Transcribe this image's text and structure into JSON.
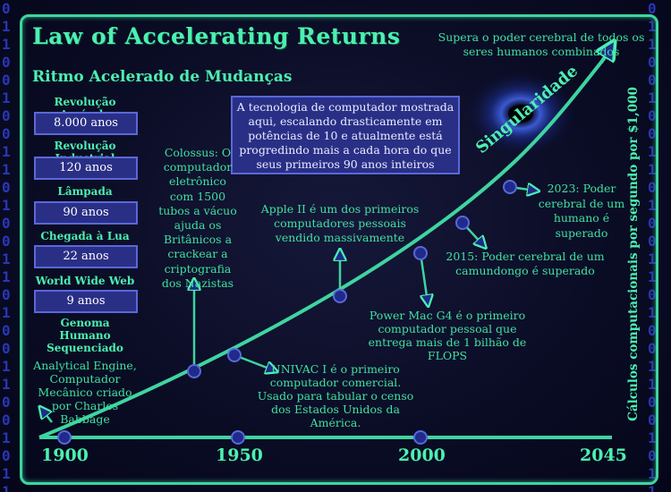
{
  "title": "Law of Accelerating Returns",
  "subtitle": "Ritmo Acelerado de Mudanças",
  "eras": [
    {
      "label": "Revolução Agrícola",
      "value": "8.000 anos"
    },
    {
      "label": "Revolução Industrial",
      "value": "120 anos"
    },
    {
      "label": "Lâmpada",
      "value": "90 anos"
    },
    {
      "label": "Chegada à Lua",
      "value": "22 anos"
    },
    {
      "label": "World Wide Web",
      "value": "9 anos"
    },
    {
      "label": "Genoma Humano Sequenciado",
      "value": ""
    }
  ],
  "info_box": "A tecnologia de computador mostrada aqui, escalando drasticamente em potências de 10 e atualmente está progredindo mais a cada hora do que seus primeiros 90 anos inteiros",
  "milestones": {
    "analytical_engine": "Analytical Engine, Computador Mecânico criado por Charles Babbage",
    "colossus": "Colossus: O computador eletrônico com 1500 tubos a vácuo ajuda os Britânicos a crackear a criptografia dos Nazistas",
    "univac": "UNIVAC I é o primeiro computador comercial. Usado para tabular o censo dos Estados Unidos da América.",
    "apple2": "Apple II é um dos primeiros computadores pessoais vendido massivamente",
    "powermac": "Power Mac G4 é o primeiro computador pessoal que entrega mais de 1 bilhão de FLOPS",
    "mouse2015": "2015: Poder cerebral de um camundongo é superado",
    "human2023": "2023: Poder cerebral de um humano é superado",
    "supera": "Supera o poder cerebral de todos os seres humanos combinados"
  },
  "singularity_label": "Singularidade",
  "y_axis_label": "Cálculos computacionais por segundo por $1,000",
  "years": [
    "1900",
    "1950",
    "2000",
    "2045"
  ],
  "binary_column": "0\n1\n1\n0\n0\n1\n0\n0\n1\n1\n0\n1\n0\n0\n1\n1\n0\n1\n0\n0\n1\n1\n0\n0\n1\n0\n1\n1",
  "colors": {
    "accent": "#4cf0b0",
    "box": "#2a2f86",
    "dot": "#1f2a8a",
    "background": "#0a0c2a"
  }
}
